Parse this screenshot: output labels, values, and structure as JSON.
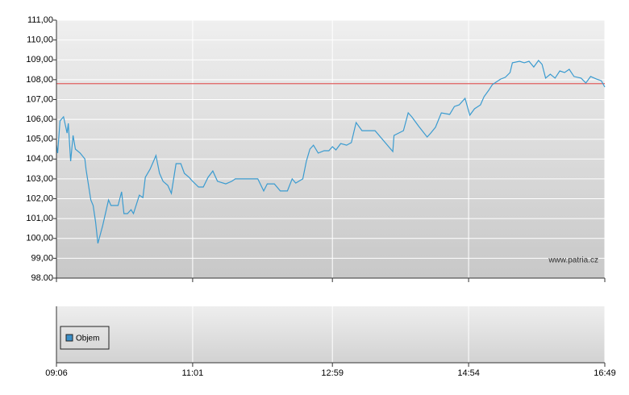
{
  "chart_data": {
    "type": "line",
    "x": [
      "09:06",
      "09:07",
      "09:09",
      "09:12",
      "09:15",
      "09:16",
      "09:18",
      "09:20",
      "09:22",
      "09:26",
      "09:30",
      "09:31",
      "09:35",
      "09:37",
      "09:39",
      "09:41",
      "09:45",
      "09:50",
      "09:52",
      "09:58",
      "10:01",
      "10:03",
      "10:06",
      "10:09",
      "10:11",
      "10:16",
      "10:19",
      "10:21",
      "10:25",
      "10:28",
      "10:30",
      "10:33",
      "10:36",
      "10:40",
      "10:43",
      "10:47",
      "10:51",
      "10:54",
      "10:58",
      "11:01",
      "11:06",
      "11:10",
      "11:14",
      "11:18",
      "11:22",
      "11:29",
      "11:34",
      "11:37",
      "11:56",
      "12:01",
      "12:04",
      "12:10",
      "12:15",
      "12:21",
      "12:25",
      "12:28",
      "12:34",
      "12:37",
      "12:40",
      "12:43",
      "12:47",
      "12:52",
      "12:56",
      "12:59",
      "13:02",
      "13:06",
      "13:11",
      "13:15",
      "13:19",
      "13:24",
      "13:35",
      "13:50",
      "13:51",
      "13:59",
      "14:03",
      "14:06",
      "14:12",
      "14:19",
      "14:22",
      "14:26",
      "14:31",
      "14:38",
      "14:42",
      "14:46",
      "14:51",
      "14:55",
      "14:59",
      "15:04",
      "15:07",
      "15:11",
      "15:14",
      "15:18",
      "15:21",
      "15:25",
      "15:29",
      "15:31",
      "15:37",
      "15:41",
      "15:45",
      "15:49",
      "15:53",
      "15:56",
      "15:59",
      "16:03",
      "16:07",
      "16:11",
      "16:15",
      "16:19",
      "16:23",
      "16:29",
      "16:33",
      "16:37",
      "16:42",
      "16:46",
      "16:49"
    ],
    "series": [
      {
        "color": "#3a9bd0",
        "values": [
          104.7,
          104.3,
          105.92,
          106.13,
          105.31,
          105.8,
          103.89,
          105.19,
          104.5,
          104.3,
          104.01,
          103.48,
          101.94,
          101.66,
          100.84,
          99.75,
          100.64,
          101.94,
          101.66,
          101.66,
          102.35,
          101.25,
          101.25,
          101.45,
          101.25,
          102.18,
          102.06,
          103.08,
          103.48,
          103.89,
          104.18,
          103.28,
          102.88,
          102.67,
          102.27,
          103.77,
          103.77,
          103.28,
          103.08,
          102.88,
          102.59,
          102.59,
          103.08,
          103.4,
          102.88,
          102.75,
          102.88,
          103.0,
          103.0,
          102.39,
          102.75,
          102.75,
          102.39,
          102.39,
          103.0,
          102.79,
          103.0,
          103.89,
          104.5,
          104.7,
          104.3,
          104.42,
          104.42,
          104.62,
          104.46,
          104.78,
          104.7,
          104.83,
          105.84,
          105.43,
          105.43,
          104.38,
          105.19,
          105.43,
          106.33,
          106.13,
          105.64,
          105.11,
          105.31,
          105.6,
          106.33,
          106.25,
          106.65,
          106.73,
          107.06,
          106.21,
          106.53,
          106.73,
          107.14,
          107.47,
          107.75,
          107.91,
          108.03,
          108.12,
          108.36,
          108.85,
          108.93,
          108.85,
          108.93,
          108.64,
          108.97,
          108.77,
          108.08,
          108.28,
          108.08,
          108.44,
          108.36,
          108.52,
          108.16,
          108.08,
          107.83,
          108.16,
          108.03,
          107.95,
          107.63
        ]
      }
    ],
    "reference_line": {
      "value": 107.8,
      "color": "#e06060"
    },
    "xlim": [
      "09:06",
      "16:49"
    ],
    "xticks": [
      "09:06",
      "11:01",
      "12:59",
      "14:54",
      "16:49"
    ],
    "ylim": [
      98,
      111
    ],
    "yticks": [
      {
        "value": 98,
        "label": "98.00"
      },
      {
        "value": 99,
        "label": "99,00"
      },
      {
        "value": 100,
        "label": "100,00"
      },
      {
        "value": 101,
        "label": "101,00"
      },
      {
        "value": 102,
        "label": "102,00"
      },
      {
        "value": 103,
        "label": "103,00"
      },
      {
        "value": 104,
        "label": "104,00"
      },
      {
        "value": 105,
        "label": "105,00"
      },
      {
        "value": 106,
        "label": "106,00"
      },
      {
        "value": 107,
        "label": "107,00"
      },
      {
        "value": 108,
        "label": "108,00"
      },
      {
        "value": 109,
        "label": "109,00"
      },
      {
        "value": 110,
        "label": "110,00"
      },
      {
        "value": 111,
        "label": "111,00"
      }
    ],
    "grid": true,
    "watermark": "www.patria.cz",
    "volume_legend": {
      "name": "Objem",
      "color": "#3a8fc8"
    }
  }
}
